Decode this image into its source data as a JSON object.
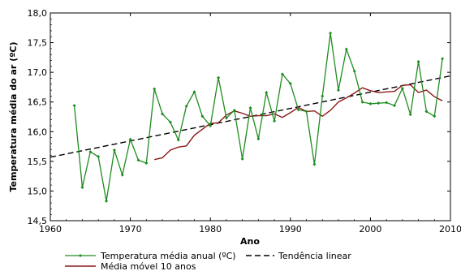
{
  "chart_data": {
    "type": "line",
    "xlabel": "Ano",
    "ylabel": "Temperatura média do ar (ºC)",
    "xlim": [
      1960,
      2010
    ],
    "ylim": [
      14.5,
      18.0
    ],
    "xticks": [
      1960,
      1970,
      1980,
      1990,
      2000,
      2010
    ],
    "yticks": [
      14.5,
      15.0,
      15.5,
      16.0,
      16.5,
      17.0,
      17.5,
      18.0
    ],
    "xtick_labels": [
      "1960",
      "1970",
      "1980",
      "1990",
      "2000",
      "2010"
    ],
    "ytick_labels": [
      "14,5",
      "15,0",
      "15,5",
      "16,0",
      "16,5",
      "17,0",
      "17,5",
      "18,0"
    ],
    "legend_position": "bottom",
    "series": [
      {
        "name": "Temperatura média anual (ºC)",
        "color": "#1e8c1e",
        "marker": "diamond",
        "x": [
          1963,
          1964,
          1965,
          1966,
          1967,
          1968,
          1969,
          1970,
          1971,
          1972,
          1973,
          1974,
          1975,
          1976,
          1977,
          1978,
          1979,
          1980,
          1981,
          1982,
          1983,
          1984,
          1985,
          1986,
          1987,
          1988,
          1989,
          1990,
          1991,
          1992,
          1993,
          1994,
          1995,
          1996,
          1997,
          1998,
          1999,
          2000,
          2001,
          2002,
          2003,
          2004,
          2005,
          2006,
          2007,
          2008,
          2009
        ],
        "y": [
          16.44,
          15.06,
          15.66,
          15.58,
          14.83,
          15.69,
          15.27,
          15.87,
          15.52,
          15.47,
          16.72,
          16.3,
          16.16,
          15.86,
          16.43,
          16.67,
          16.26,
          16.1,
          16.91,
          16.23,
          16.36,
          15.54,
          16.4,
          15.88,
          16.66,
          16.18,
          16.97,
          16.81,
          16.37,
          16.34,
          15.45,
          16.6,
          17.66,
          16.7,
          17.39,
          17.02,
          16.5,
          16.47,
          16.48,
          16.49,
          16.44,
          16.73,
          16.29,
          17.18,
          16.34,
          16.26,
          17.23
        ]
      },
      {
        "name": "Tendência linear",
        "color": "#000000",
        "style": "dashed",
        "x": [
          1960,
          2010
        ],
        "y": [
          15.57,
          16.94
        ]
      },
      {
        "name": "Média móvel 10 anos",
        "color": "#8b1a1a",
        "x": [
          1973,
          1974,
          1975,
          1976,
          1977,
          1978,
          1979,
          1980,
          1981,
          1982,
          1983,
          1984,
          1985,
          1986,
          1987,
          1988,
          1989,
          1990,
          1991,
          1992,
          1993,
          1994,
          1995,
          1996,
          1997,
          1998,
          1999,
          2000,
          2001,
          2002,
          2003,
          2004,
          2005,
          2006,
          2007,
          2008,
          2009
        ],
        "y": [
          15.53,
          15.56,
          15.69,
          15.74,
          15.76,
          15.94,
          16.04,
          16.14,
          16.15,
          16.28,
          16.35,
          16.31,
          16.26,
          16.27,
          16.27,
          16.3,
          16.24,
          16.32,
          16.41,
          16.34,
          16.35,
          16.26,
          16.36,
          16.5,
          16.57,
          16.65,
          16.74,
          16.69,
          16.66,
          16.67,
          16.68,
          16.78,
          16.79,
          16.66,
          16.7,
          16.59,
          16.52
        ]
      }
    ]
  }
}
